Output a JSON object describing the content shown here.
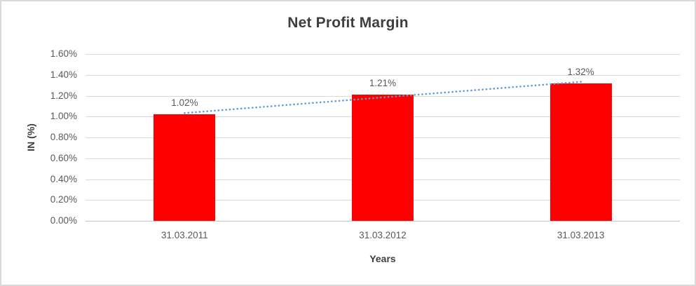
{
  "chart_data": {
    "type": "bar",
    "title": "Net Profit Margin",
    "xlabel": "Years",
    "ylabel": "IN (%)",
    "categories": [
      "31.03.2011",
      "31.03.2012",
      "31.03.2013"
    ],
    "values": [
      1.02,
      1.21,
      1.32
    ],
    "data_labels": [
      "1.02%",
      "1.21%",
      "1.32%"
    ],
    "ylim": [
      0,
      1.6
    ],
    "ytick_step": 0.2,
    "ytick_labels": [
      "0.00%",
      "0.20%",
      "0.40%",
      "0.60%",
      "0.80%",
      "1.00%",
      "1.20%",
      "1.40%",
      "1.60%"
    ],
    "grid": true,
    "legend": "none",
    "bar_color": "#ff0000",
    "trendline": {
      "type": "linear",
      "style": "dotted",
      "color": "#5b9bd5"
    }
  }
}
